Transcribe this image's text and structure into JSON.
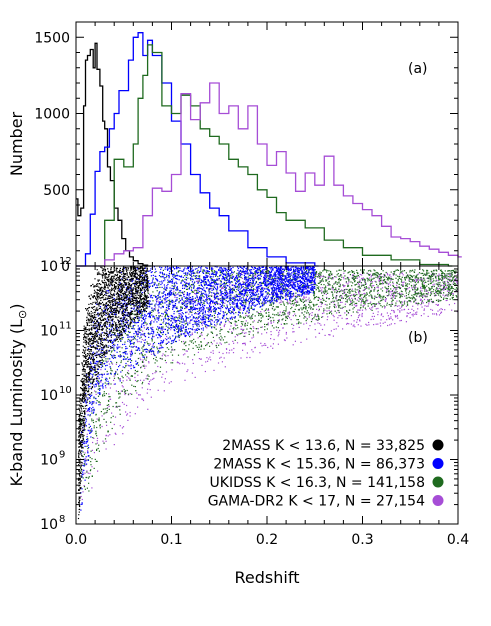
{
  "chart_data": [
    {
      "type": "line",
      "panel_label": "(a)",
      "ylabel": "Number",
      "xlim": [
        0.0,
        0.4
      ],
      "ylim": [
        0,
        1600
      ],
      "yticks": [
        0,
        500,
        1000,
        1500
      ],
      "ytick_labels": [
        "0",
        "500",
        "1000",
        "1500"
      ],
      "grid": false,
      "series": [
        {
          "name": "2MASS K < 13.6, N = 33,825",
          "color": "#000000",
          "x": [
            0.0,
            0.002,
            0.005,
            0.008,
            0.01,
            0.012,
            0.015,
            0.018,
            0.02,
            0.022,
            0.025,
            0.028,
            0.03,
            0.033,
            0.036,
            0.04,
            0.044,
            0.048,
            0.052,
            0.056,
            0.06,
            0.065,
            0.07,
            0.075
          ],
          "y": [
            440,
            330,
            380,
            1050,
            1350,
            1380,
            1420,
            1300,
            1460,
            1290,
            1180,
            950,
            900,
            650,
            560,
            380,
            300,
            180,
            100,
            60,
            35,
            15,
            5,
            0
          ]
        },
        {
          "name": "2MASS K < 15.36, N = 86,373",
          "color": "#0000ff",
          "x": [
            0.0,
            0.01,
            0.015,
            0.02,
            0.025,
            0.03,
            0.035,
            0.04,
            0.045,
            0.05,
            0.055,
            0.06,
            0.065,
            0.07,
            0.075,
            0.08,
            0.09,
            0.1,
            0.11,
            0.12,
            0.13,
            0.14,
            0.15,
            0.16,
            0.18,
            0.2,
            0.22,
            0.25
          ],
          "y": [
            0,
            80,
            340,
            620,
            750,
            780,
            900,
            1000,
            1150,
            1150,
            1350,
            1500,
            1530,
            1380,
            1480,
            1380,
            1200,
            950,
            800,
            600,
            480,
            380,
            330,
            230,
            120,
            60,
            20,
            0
          ]
        },
        {
          "name": "UKIDSS K < 16.3, N = 141,158",
          "color": "#1f6a1f",
          "x": [
            0.0,
            0.03,
            0.04,
            0.05,
            0.06,
            0.065,
            0.07,
            0.075,
            0.08,
            0.09,
            0.1,
            0.11,
            0.12,
            0.13,
            0.14,
            0.15,
            0.16,
            0.17,
            0.18,
            0.19,
            0.2,
            0.21,
            0.22,
            0.24,
            0.26,
            0.28,
            0.3,
            0.33,
            0.36,
            0.39
          ],
          "y": [
            0,
            300,
            700,
            650,
            800,
            1100,
            1250,
            1450,
            1400,
            1050,
            1000,
            1120,
            1050,
            900,
            850,
            800,
            700,
            650,
            600,
            500,
            450,
            350,
            300,
            250,
            170,
            120,
            70,
            40,
            10,
            0
          ]
        },
        {
          "name": "GAMA-DR2 K < 17, N = 27,154",
          "color": "#a64dd6",
          "x": [
            0.0,
            0.03,
            0.04,
            0.05,
            0.06,
            0.07,
            0.08,
            0.09,
            0.1,
            0.11,
            0.12,
            0.13,
            0.14,
            0.15,
            0.16,
            0.17,
            0.18,
            0.19,
            0.2,
            0.21,
            0.22,
            0.23,
            0.24,
            0.25,
            0.26,
            0.27,
            0.28,
            0.29,
            0.3,
            0.31,
            0.32,
            0.33,
            0.34,
            0.35,
            0.36,
            0.37,
            0.38,
            0.39,
            0.4
          ],
          "y": [
            0,
            40,
            80,
            100,
            120,
            330,
            510,
            490,
            600,
            1130,
            960,
            1070,
            1200,
            1000,
            1050,
            900,
            1050,
            800,
            660,
            750,
            610,
            490,
            610,
            530,
            720,
            530,
            460,
            410,
            370,
            330,
            260,
            190,
            180,
            160,
            130,
            110,
            90,
            70,
            60
          ]
        }
      ]
    },
    {
      "type": "scatter",
      "panel_label": "(b)",
      "xlabel": "Redshift",
      "ylabel": "K-band Luminosity (L",
      "ylabel_sub": "⊙",
      "ylabel_close": ")",
      "xlim": [
        0.0,
        0.4
      ],
      "ylim": [
        100000000,
        1000000000000
      ],
      "yscale": "log",
      "xticks": [
        0.0,
        0.1,
        0.2,
        0.3,
        0.4
      ],
      "xtick_labels": [
        "0.0",
        "0.1",
        "0.2",
        "0.3",
        "0.4"
      ],
      "yticks": [
        100000000,
        1000000000,
        10000000000,
        100000000000,
        1000000000000
      ],
      "ytick_labels": [
        {
          "base": "10",
          "exp": "8"
        },
        {
          "base": "10",
          "exp": "9"
        },
        {
          "base": "10",
          "exp": "10"
        },
        {
          "base": "10",
          "exp": "11"
        },
        {
          "base": "10",
          "exp": "12"
        }
      ],
      "legend_position": "bottom-right",
      "grid": false,
      "series": [
        {
          "name": "2MASS K < 13.6, N = 33,825",
          "color": "#000000",
          "z_max": 0.075,
          "logL_faint_at": [
            [
              0.002,
              8.0
            ],
            [
              0.01,
              9.8
            ],
            [
              0.03,
              10.6
            ],
            [
              0.07,
              11.3
            ]
          ],
          "logL_bright": 12.0
        },
        {
          "name": "2MASS K < 15.36, N = 86,373",
          "color": "#0000ff",
          "z_max": 0.25,
          "logL_faint_at": [
            [
              0.005,
              8.2
            ],
            [
              0.02,
              9.8
            ],
            [
              0.05,
              10.3
            ],
            [
              0.1,
              10.8
            ],
            [
              0.2,
              11.4
            ],
            [
              0.25,
              11.6
            ]
          ],
          "logL_bright": 12.0
        },
        {
          "name": "UKIDSS K < 16.3, N = 141,158",
          "color": "#1f6a1f",
          "z_max": 0.4,
          "logL_faint_at": [
            [
              0.01,
              8.3
            ],
            [
              0.03,
              9.3
            ],
            [
              0.06,
              10.0
            ],
            [
              0.1,
              10.5
            ],
            [
              0.2,
              11.0
            ],
            [
              0.3,
              11.3
            ],
            [
              0.4,
              11.5
            ]
          ],
          "logL_bright": 11.95
        },
        {
          "name": "GAMA-DR2 K < 17, N = 27,154",
          "color": "#a64dd6",
          "z_max": 0.4,
          "logL_faint_at": [
            [
              0.01,
              8.3
            ],
            [
              0.03,
              9.0
            ],
            [
              0.06,
              9.6
            ],
            [
              0.1,
              10.1
            ],
            [
              0.2,
              10.7
            ],
            [
              0.3,
              11.0
            ],
            [
              0.4,
              11.3
            ]
          ],
          "logL_bright": 11.9
        }
      ]
    }
  ]
}
